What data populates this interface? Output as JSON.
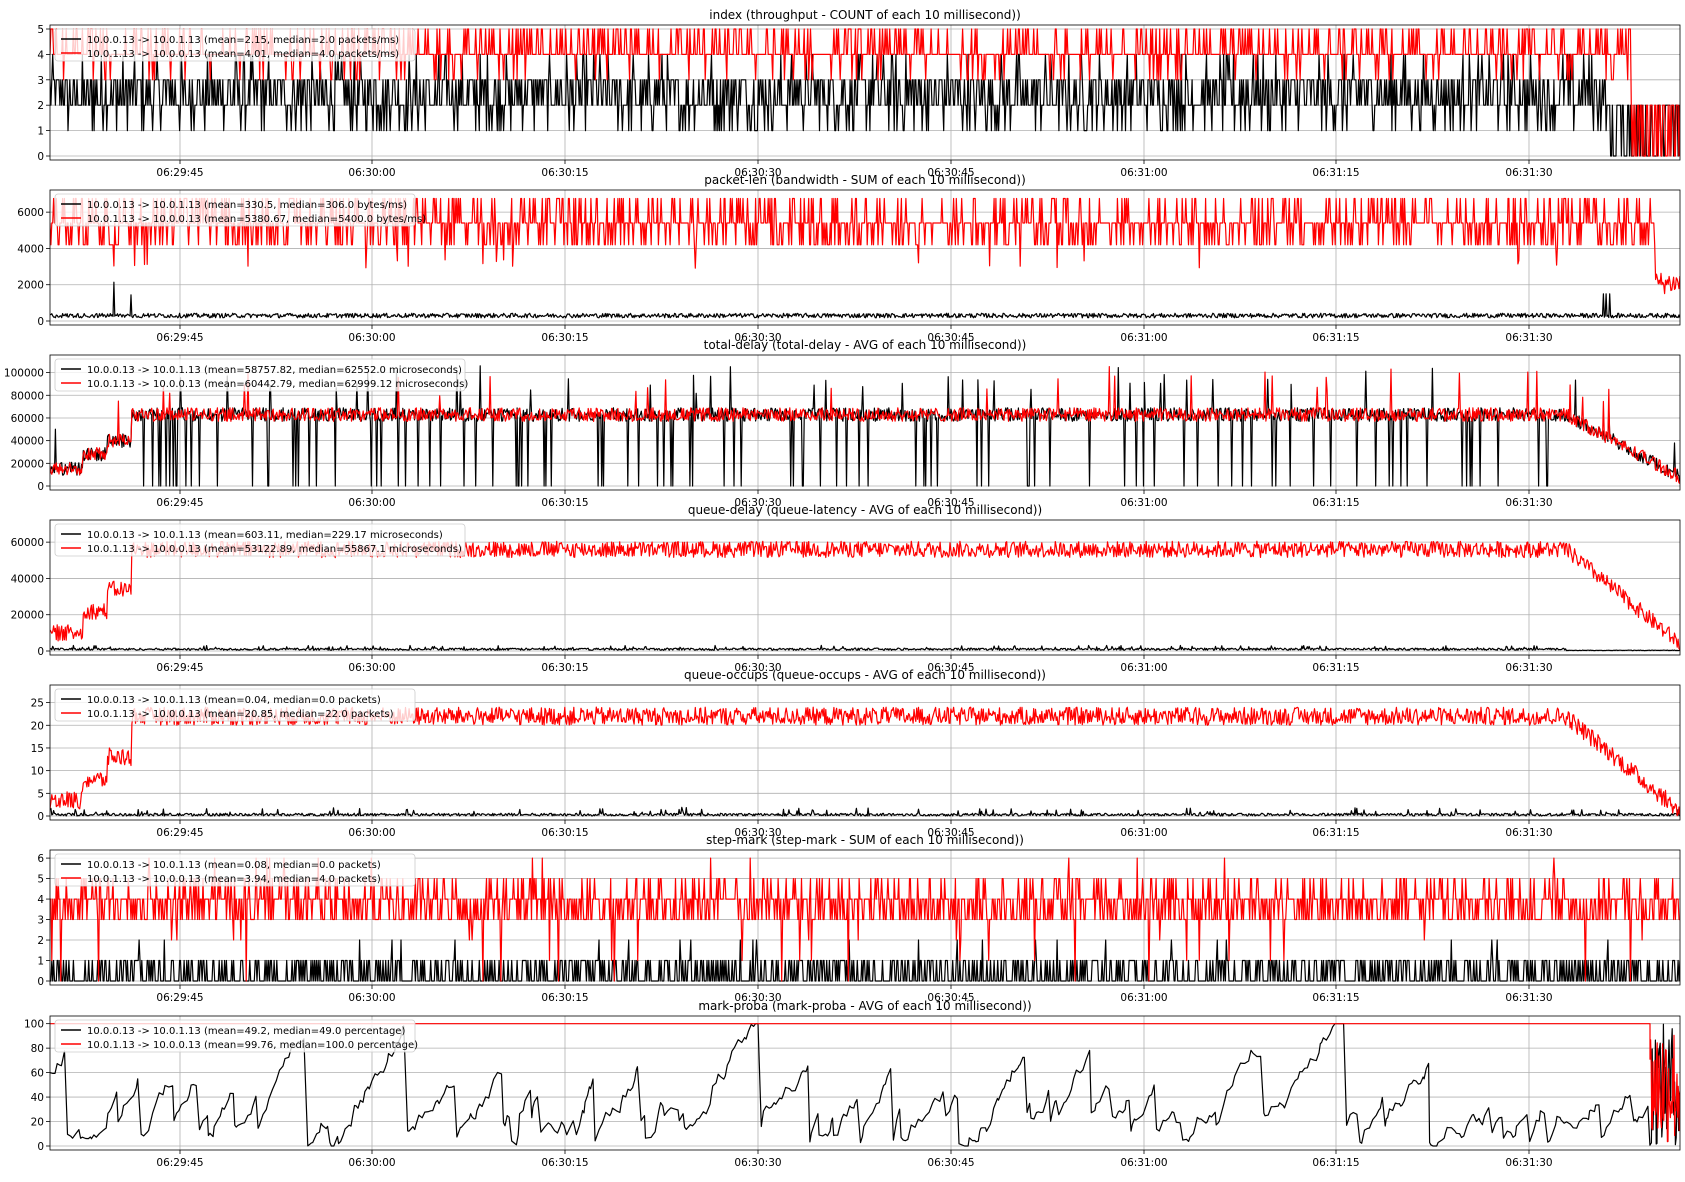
{
  "figure": {
    "background": "#ffffff"
  },
  "chart_data": [
    {
      "type": "line",
      "title": "index (throughput - COUNT of each 10 millisecond))",
      "xlabel": "",
      "ylabel": "",
      "ylim": [
        0,
        5
      ],
      "yticks": [
        0,
        1,
        2,
        3,
        4,
        5
      ],
      "xticks": [
        "06:29:45",
        "06:30:00",
        "06:30:15",
        "06:30:30",
        "06:30:45",
        "06:31:00",
        "06:31:15",
        "06:31:30"
      ],
      "grid": true,
      "legend_position": "top-left",
      "series": [
        {
          "name": "10.0.0.13 -> 10.0.1.13 (mean=2.15, median=2.0 packets/ms)",
          "color": "#000000",
          "mean": 2.15,
          "median": 2.0,
          "range": [
            0,
            4
          ]
        },
        {
          "name": "10.0.1.13 -> 10.0.0.13 (mean=4.01, median=4.0 packets/ms)",
          "color": "#ff0000",
          "mean": 4.01,
          "median": 4.0,
          "range": [
            3,
            5
          ]
        }
      ]
    },
    {
      "type": "line",
      "title": "packet-len (bandwidth - SUM of each 10 millisecond))",
      "xlabel": "",
      "ylabel": "",
      "ylim": [
        0,
        7000
      ],
      "yticks": [
        0,
        2000,
        4000,
        6000
      ],
      "xticks": [
        "06:29:45",
        "06:30:00",
        "06:30:15",
        "06:30:30",
        "06:30:45",
        "06:31:00",
        "06:31:15",
        "06:31:30"
      ],
      "grid": true,
      "legend_position": "top-left",
      "series": [
        {
          "name": "10.0.0.13 -> 10.0.1.13 (mean=330.5, median=306.0 bytes/ms)",
          "color": "#000000",
          "mean": 330.5,
          "median": 306.0,
          "range": [
            0,
            2200
          ]
        },
        {
          "name": "10.0.1.13 -> 10.0.0.13 (mean=5380.67, median=5400.0 bytes/ms)",
          "color": "#ff0000",
          "mean": 5380.67,
          "median": 5400.0,
          "range": [
            2900,
            6800
          ]
        }
      ]
    },
    {
      "type": "line",
      "title": "total-delay (total-delay - AVG of each 10 millisecond))",
      "xlabel": "",
      "ylabel": "",
      "ylim": [
        0,
        112000
      ],
      "yticks": [
        0,
        20000,
        40000,
        60000,
        80000,
        100000
      ],
      "xticks": [
        "06:29:45",
        "06:30:00",
        "06:30:15",
        "06:30:30",
        "06:30:45",
        "06:31:00",
        "06:31:15",
        "06:31:30"
      ],
      "grid": true,
      "legend_position": "top-left",
      "series": [
        {
          "name": "10.0.0.13 -> 10.0.1.13 (mean=58757.82, median=62552.0 microseconds)",
          "color": "#000000",
          "mean": 58757.82,
          "median": 62552.0,
          "range": [
            0,
            107000
          ]
        },
        {
          "name": "10.0.1.13 -> 10.0.0.13 (mean=60442.79, median=62999.12 microseconds)",
          "color": "#ff0000",
          "mean": 60442.79,
          "median": 62999.12,
          "range": [
            5000,
            100000
          ]
        }
      ]
    },
    {
      "type": "line",
      "title": "queue-delay (queue-latency - AVG of each 10 millisecond))",
      "xlabel": "",
      "ylabel": "",
      "ylim": [
        0,
        70000
      ],
      "yticks": [
        0,
        20000,
        40000,
        60000
      ],
      "xticks": [
        "06:29:45",
        "06:30:00",
        "06:30:15",
        "06:30:30",
        "06:30:45",
        "06:31:00",
        "06:31:15",
        "06:31:30"
      ],
      "grid": true,
      "legend_position": "top-left",
      "series": [
        {
          "name": "10.0.0.13 -> 10.0.1.13 (mean=603.11, median=229.17 microseconds)",
          "color": "#000000",
          "mean": 603.11,
          "median": 229.17,
          "range": [
            0,
            4000
          ]
        },
        {
          "name": "10.0.1.13 -> 10.0.0.13 (mean=53122.89, median=55867.1 microseconds)",
          "color": "#ff0000",
          "mean": 53122.89,
          "median": 55867.1,
          "range": [
            3000,
            68000
          ]
        }
      ]
    },
    {
      "type": "line",
      "title": "queue-occups (queue-occups - AVG of each 10 millisecond))",
      "xlabel": "",
      "ylabel": "",
      "ylim": [
        0,
        28
      ],
      "yticks": [
        0,
        5,
        10,
        15,
        20,
        25
      ],
      "xticks": [
        "06:29:45",
        "06:30:00",
        "06:30:15",
        "06:30:30",
        "06:30:45",
        "06:31:00",
        "06:31:15",
        "06:31:30"
      ],
      "grid": true,
      "legend_position": "top-left",
      "series": [
        {
          "name": "10.0.0.13 -> 10.0.1.13 (mean=0.04, median=0.0 packets)",
          "color": "#000000",
          "mean": 0.04,
          "median": 0.0,
          "range": [
            0,
            2
          ]
        },
        {
          "name": "10.0.1.13 -> 10.0.0.13 (mean=20.85, median=22.0 packets)",
          "color": "#ff0000",
          "mean": 20.85,
          "median": 22.0,
          "range": [
            1,
            28
          ]
        }
      ]
    },
    {
      "type": "line",
      "title": "step-mark (step-mark - SUM of each 10 millisecond))",
      "xlabel": "",
      "ylabel": "",
      "ylim": [
        0,
        6.2
      ],
      "yticks": [
        0,
        1,
        2,
        3,
        4,
        5,
        6
      ],
      "xticks": [
        "06:29:45",
        "06:30:00",
        "06:30:15",
        "06:30:30",
        "06:30:45",
        "06:31:00",
        "06:31:15",
        "06:31:30"
      ],
      "grid": true,
      "legend_position": "top-left",
      "series": [
        {
          "name": "10.0.0.13 -> 10.0.1.13 (mean=0.08, median=0.0 packets)",
          "color": "#000000",
          "mean": 0.08,
          "median": 0.0,
          "range": [
            0,
            2
          ]
        },
        {
          "name": "10.0.1.13 -> 10.0.0.13 (mean=3.94, median=4.0 packets)",
          "color": "#ff0000",
          "mean": 3.94,
          "median": 4.0,
          "range": [
            0,
            6
          ]
        }
      ]
    },
    {
      "type": "line",
      "title": "mark-proba (mark-proba - AVG of each 10 millisecond))",
      "xlabel": "",
      "ylabel": "",
      "ylim": [
        0,
        103
      ],
      "yticks": [
        0,
        20,
        40,
        60,
        80,
        100
      ],
      "xticks": [
        "06:29:45",
        "06:30:00",
        "06:30:15",
        "06:30:30",
        "06:30:45",
        "06:31:00",
        "06:31:15",
        "06:31:30"
      ],
      "grid": true,
      "legend_position": "top-left",
      "series": [
        {
          "name": "10.0.0.13 -> 10.0.1.13 (mean=49.2, median=49.0 percentage)",
          "color": "#000000",
          "mean": 49.2,
          "median": 49.0,
          "range": [
            0,
            100
          ]
        },
        {
          "name": "10.0.1.13 -> 10.0.0.13 (mean=99.76, median=100.0 percentage)",
          "color": "#ff0000",
          "mean": 99.76,
          "median": 100.0,
          "range": [
            0,
            100
          ]
        }
      ]
    }
  ]
}
